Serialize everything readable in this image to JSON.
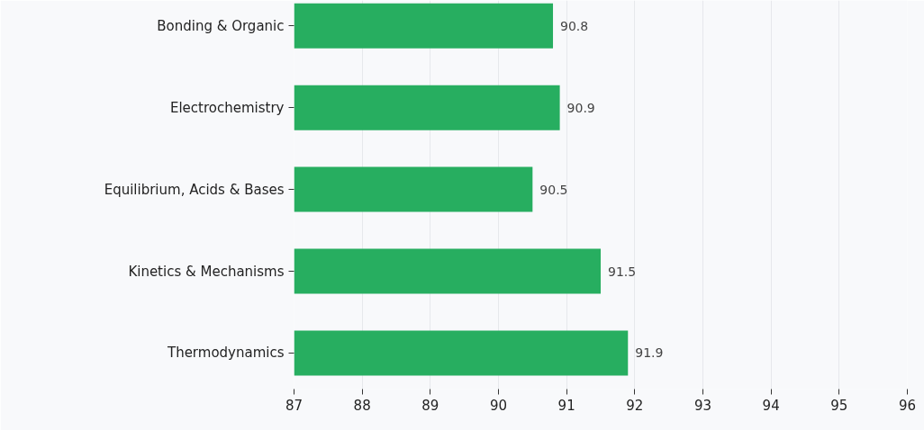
{
  "chart_data": {
    "type": "bar",
    "orientation": "horizontal",
    "categories": [
      "Bonding & Organic",
      "Electrochemistry",
      "Equilibrium, Acids & Bases",
      "Kinetics & Mechanisms",
      "Thermodynamics"
    ],
    "values": [
      90.8,
      90.9,
      90.5,
      91.5,
      91.9
    ],
    "color": "#27ae60",
    "xlim": [
      87,
      96
    ],
    "xticks": [
      87,
      88,
      89,
      90,
      91,
      92,
      93,
      94,
      95,
      96
    ],
    "grid": "x",
    "data_labels": true
  }
}
